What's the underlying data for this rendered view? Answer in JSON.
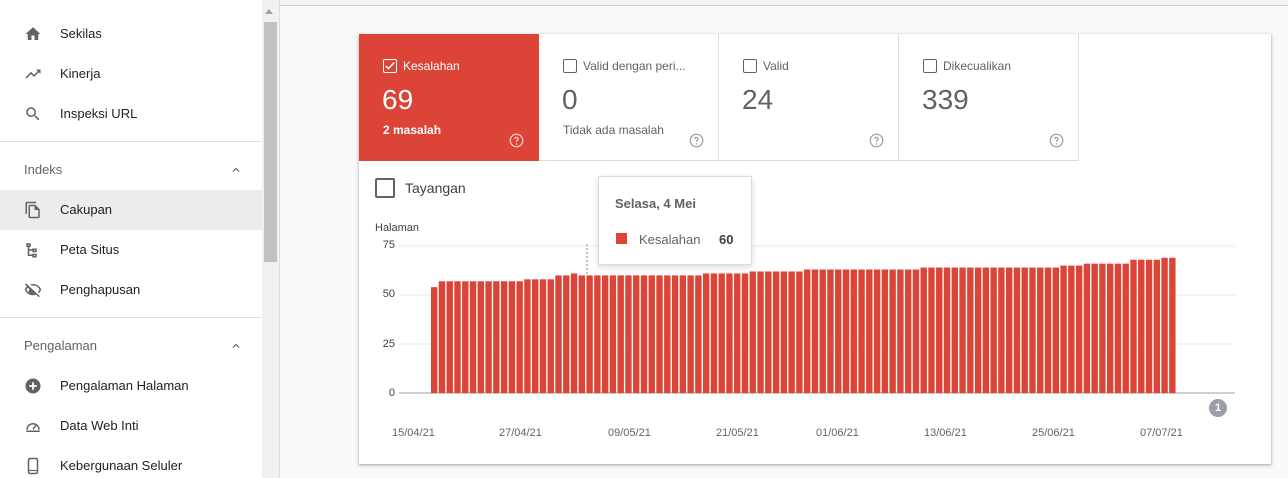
{
  "sidebar": {
    "items_top": [
      {
        "label": "Sekilas",
        "icon": "home-icon"
      },
      {
        "label": "Kinerja",
        "icon": "trending-up-icon"
      },
      {
        "label": "Inspeksi URL",
        "icon": "search-icon"
      }
    ],
    "sections": [
      {
        "title": "Indeks",
        "items": [
          {
            "label": "Cakupan",
            "icon": "file-copy-icon",
            "active": true
          },
          {
            "label": "Peta Situs",
            "icon": "sitemap-icon"
          },
          {
            "label": "Penghapusan",
            "icon": "visibility-off-icon"
          }
        ]
      },
      {
        "title": "Pengalaman",
        "items": [
          {
            "label": "Pengalaman Halaman",
            "icon": "plus-circle-icon"
          },
          {
            "label": "Data Web Inti",
            "icon": "speed-gauge-icon"
          },
          {
            "label": "Kebergunaan Seluler",
            "icon": "smartphone-icon"
          }
        ]
      }
    ]
  },
  "tiles": [
    {
      "label": "Kesalahan",
      "value": "69",
      "sub": "2 masalah",
      "checked": true,
      "color": "#db4437"
    },
    {
      "label": "Valid dengan peri...",
      "value": "0",
      "sub": "Tidak ada masalah",
      "checked": false
    },
    {
      "label": "Valid",
      "value": "24",
      "sub": "",
      "checked": false
    },
    {
      "label": "Dikecualikan",
      "value": "339",
      "sub": "",
      "checked": false
    }
  ],
  "impressions_toggle": {
    "label": "Tayangan",
    "checked": false
  },
  "tooltip": {
    "date": "Selasa, 4 Mei",
    "series": "Kesalahan",
    "value": "60"
  },
  "annotation_marker": "1",
  "chart_data": {
    "type": "bar",
    "ylabel": "Halaman",
    "ylim": [
      0,
      75
    ],
    "yticks": [
      0,
      25,
      50,
      75
    ],
    "xticks": [
      "15/04/21",
      "27/04/21",
      "09/05/21",
      "21/05/21",
      "01/06/21",
      "13/06/21",
      "25/06/21",
      "07/07/21"
    ],
    "series": [
      {
        "name": "Kesalahan",
        "color": "#db4437",
        "values": [
          54,
          57,
          57,
          57,
          57,
          57,
          57,
          57,
          57,
          57,
          57,
          57,
          58,
          58,
          58,
          58,
          60,
          60,
          61,
          60,
          60,
          60,
          60,
          60,
          60,
          60,
          60,
          60,
          60,
          60,
          60,
          60,
          60,
          60,
          60,
          61,
          61,
          61,
          61,
          61,
          61,
          62,
          62,
          62,
          62,
          62,
          62,
          62,
          63,
          63,
          63,
          63,
          63,
          63,
          63,
          63,
          63,
          63,
          63,
          63,
          63,
          63,
          63,
          64,
          64,
          64,
          64,
          64,
          64,
          64,
          64,
          64,
          64,
          64,
          64,
          64,
          64,
          64,
          64,
          64,
          64,
          65,
          65,
          65,
          66,
          66,
          66,
          66,
          66,
          66,
          68,
          68,
          68,
          68,
          69,
          69
        ]
      }
    ]
  }
}
